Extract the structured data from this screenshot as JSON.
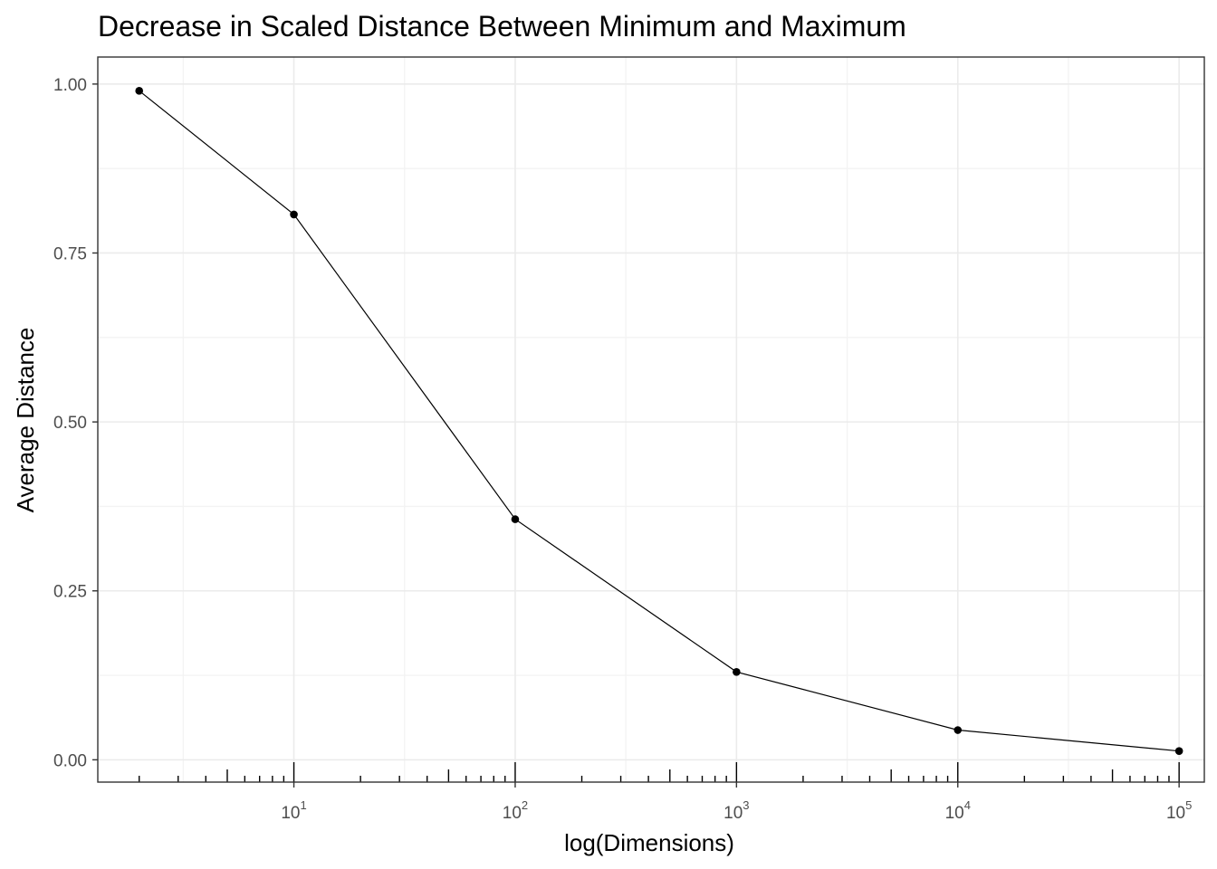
{
  "chart_data": {
    "type": "line",
    "title": "Decrease in Scaled Distance Between Minimum and Maximum",
    "xlabel": "log(Dimensions)",
    "ylabel": "Average Distance",
    "x_scale": "log10",
    "xlim": [
      1.3,
      130000
    ],
    "ylim": [
      -0.033,
      1.04
    ],
    "x_ticks": [
      {
        "value": 10,
        "base": "10",
        "exp": "1"
      },
      {
        "value": 100,
        "base": "10",
        "exp": "2"
      },
      {
        "value": 1000,
        "base": "10",
        "exp": "3"
      },
      {
        "value": 10000,
        "base": "10",
        "exp": "4"
      },
      {
        "value": 100000,
        "base": "10",
        "exp": "5"
      }
    ],
    "y_ticks": [
      {
        "value": 0.0,
        "label": "0.00"
      },
      {
        "value": 0.25,
        "label": "0.25"
      },
      {
        "value": 0.5,
        "label": "0.50"
      },
      {
        "value": 0.75,
        "label": "0.75"
      },
      {
        "value": 1.0,
        "label": "1.00"
      }
    ],
    "series": [
      {
        "name": "Average Distance",
        "x": [
          2,
          10,
          100,
          1000,
          10000,
          100000
        ],
        "y": [
          0.99,
          0.807,
          0.356,
          0.13,
          0.044,
          0.013
        ]
      }
    ],
    "grid": true,
    "legend": "none",
    "rug": "log tick marks along bottom of panel",
    "colors": {
      "line": "#000000",
      "points": "#000000",
      "grid_major": "#ebebeb",
      "grid_minor": "#f3f3f3",
      "panel_border": "#333333",
      "tick_text": "#4d4d4d"
    }
  }
}
